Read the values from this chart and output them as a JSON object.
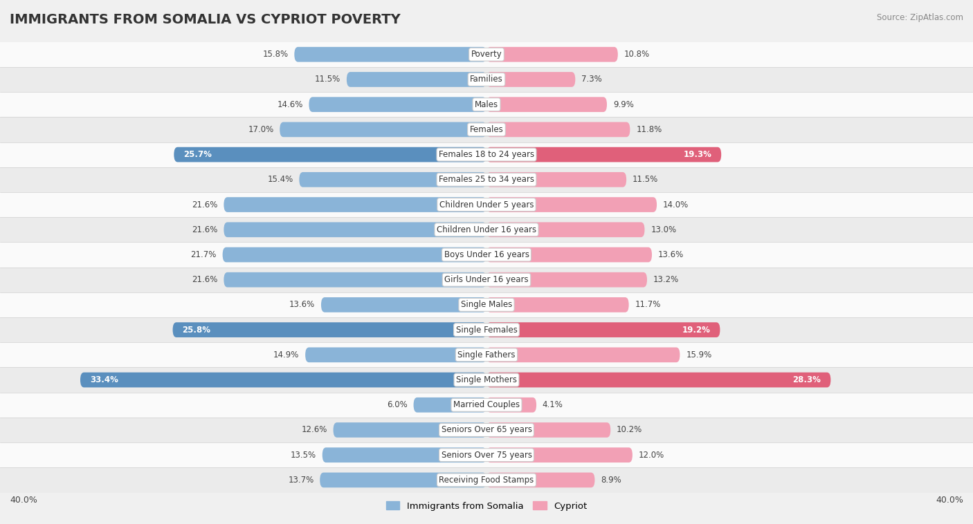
{
  "title": "IMMIGRANTS FROM SOMALIA VS CYPRIOT POVERTY",
  "source": "Source: ZipAtlas.com",
  "categories": [
    "Poverty",
    "Families",
    "Males",
    "Females",
    "Females 18 to 24 years",
    "Females 25 to 34 years",
    "Children Under 5 years",
    "Children Under 16 years",
    "Boys Under 16 years",
    "Girls Under 16 years",
    "Single Males",
    "Single Females",
    "Single Fathers",
    "Single Mothers",
    "Married Couples",
    "Seniors Over 65 years",
    "Seniors Over 75 years",
    "Receiving Food Stamps"
  ],
  "somalia_values": [
    15.8,
    11.5,
    14.6,
    17.0,
    25.7,
    15.4,
    21.6,
    21.6,
    21.7,
    21.6,
    13.6,
    25.8,
    14.9,
    33.4,
    6.0,
    12.6,
    13.5,
    13.7
  ],
  "cypriot_values": [
    10.8,
    7.3,
    9.9,
    11.8,
    19.3,
    11.5,
    14.0,
    13.0,
    13.6,
    13.2,
    11.7,
    19.2,
    15.9,
    28.3,
    4.1,
    10.2,
    12.0,
    8.9
  ],
  "somalia_color": "#8ab4d8",
  "cypriot_color": "#f2a0b5",
  "somalia_highlight_color": "#5a8fbe",
  "cypriot_highlight_color": "#e0607a",
  "label_somalia": "Immigrants from Somalia",
  "label_cypriot": "Cypriot",
  "xlim": 40.0,
  "background_color": "#f0f0f0",
  "row_bg_light": "#fafafa",
  "row_bg_dark": "#ebebeb",
  "highlight_rows": [
    4,
    11,
    13
  ],
  "bar_height": 0.6,
  "title_fontsize": 14,
  "value_fontsize": 8.5,
  "category_fontsize": 8.5
}
